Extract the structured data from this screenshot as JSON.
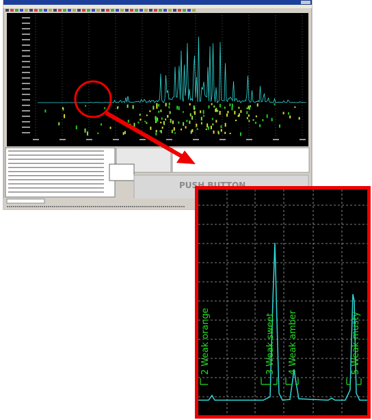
{
  "button": {
    "label": "PUSH BUTTON"
  },
  "inset": {
    "labels": [
      "2 Weak orange",
      "3 Weak sweet",
      "4 Weak amber",
      "5 Weak musty"
    ]
  }
}
